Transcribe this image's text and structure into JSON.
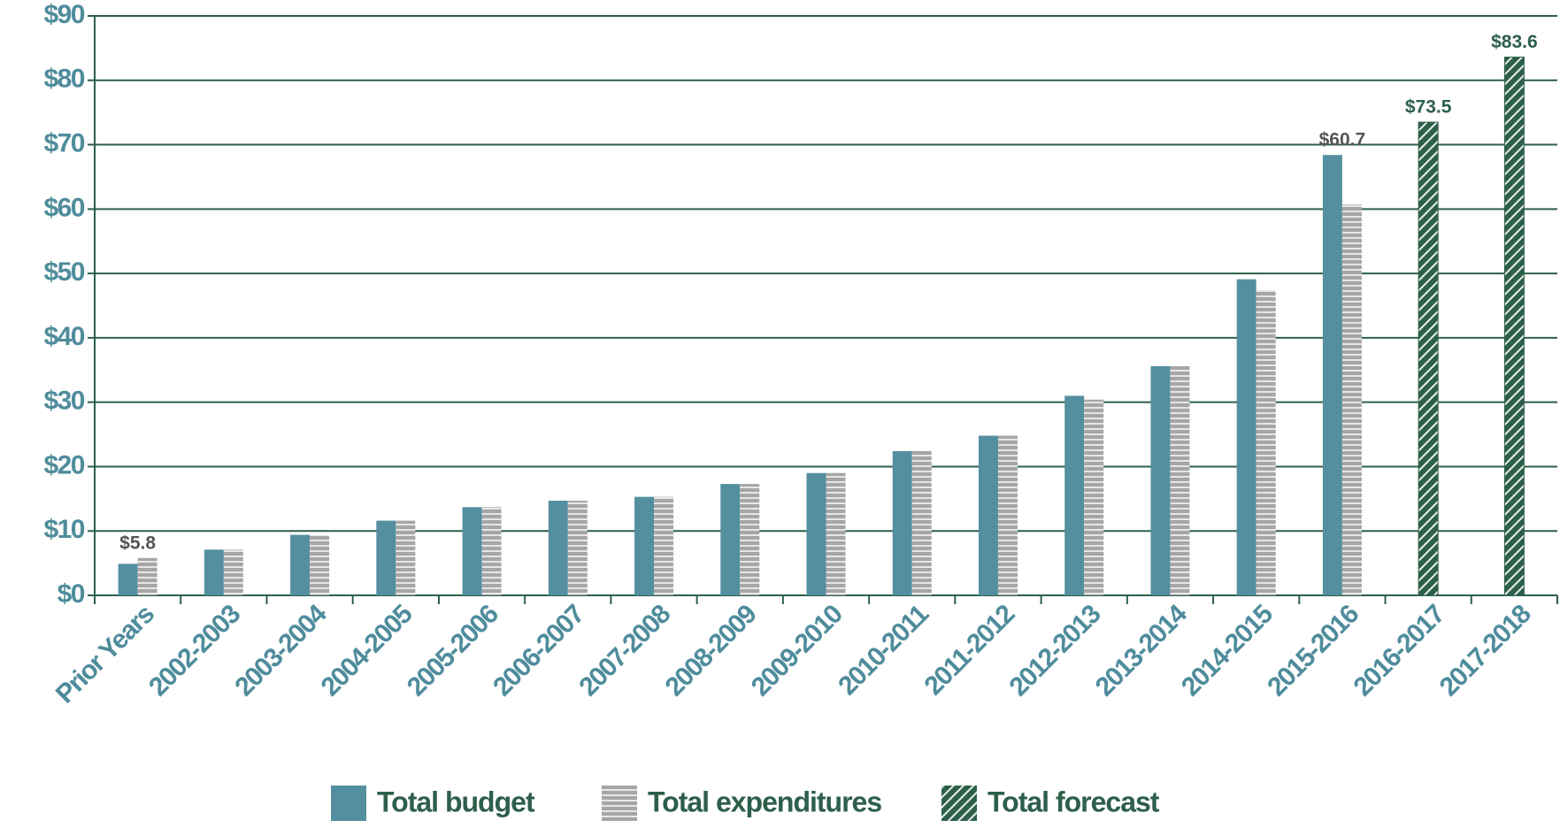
{
  "chart_data": {
    "type": "bar",
    "categories": [
      "Prior Years",
      "2002-2003",
      "2003-2004",
      "2004-2005",
      "2005-2006",
      "2006-2007",
      "2007-2008",
      "2008-2009",
      "2009-2010",
      "2010-2011",
      "2011-2012",
      "2012-2013",
      "2013-2014",
      "2014-2015",
      "2015-2016",
      "2016-2017",
      "2017-2018"
    ],
    "series": [
      {
        "name": "Total budget",
        "color": "#548f9f",
        "values": [
          4.9,
          7.1,
          9.4,
          11.6,
          13.7,
          14.7,
          15.3,
          17.3,
          19.0,
          22.4,
          24.8,
          31.0,
          35.6,
          49.1,
          68.4,
          null,
          null
        ]
      },
      {
        "name": "Total expenditures",
        "color": "#a6a6a6",
        "pattern": "stripes",
        "values": [
          5.8,
          7.1,
          9.4,
          11.6,
          13.7,
          14.7,
          15.3,
          17.3,
          19.0,
          22.4,
          24.8,
          30.4,
          35.6,
          47.4,
          60.7,
          null,
          null
        ],
        "value_labels": [
          "$5.8",
          null,
          null,
          null,
          null,
          null,
          null,
          null,
          null,
          null,
          null,
          null,
          null,
          null,
          "$60.7",
          null,
          null
        ]
      },
      {
        "name": "Total forecast",
        "color": "#2d5f4a",
        "pattern": "hatch",
        "values": [
          null,
          null,
          null,
          null,
          null,
          null,
          null,
          null,
          null,
          null,
          null,
          null,
          null,
          null,
          null,
          73.5,
          83.6
        ],
        "value_labels": [
          null,
          null,
          null,
          null,
          null,
          null,
          null,
          null,
          null,
          null,
          null,
          null,
          null,
          null,
          null,
          "$73.5",
          "$83.6"
        ]
      }
    ],
    "ylim": [
      0,
      90
    ],
    "yticks": [
      {
        "value": 0,
        "label": "$0"
      },
      {
        "value": 10,
        "label": "$10"
      },
      {
        "value": 20,
        "label": "$20"
      },
      {
        "value": 30,
        "label": "$30"
      },
      {
        "value": 40,
        "label": "$40"
      },
      {
        "value": 50,
        "label": "$50"
      },
      {
        "value": 60,
        "label": "$60"
      },
      {
        "value": 70,
        "label": "$70"
      },
      {
        "value": 80,
        "label": "$80"
      },
      {
        "value": 90,
        "label": "$90"
      }
    ],
    "grid": true
  }
}
